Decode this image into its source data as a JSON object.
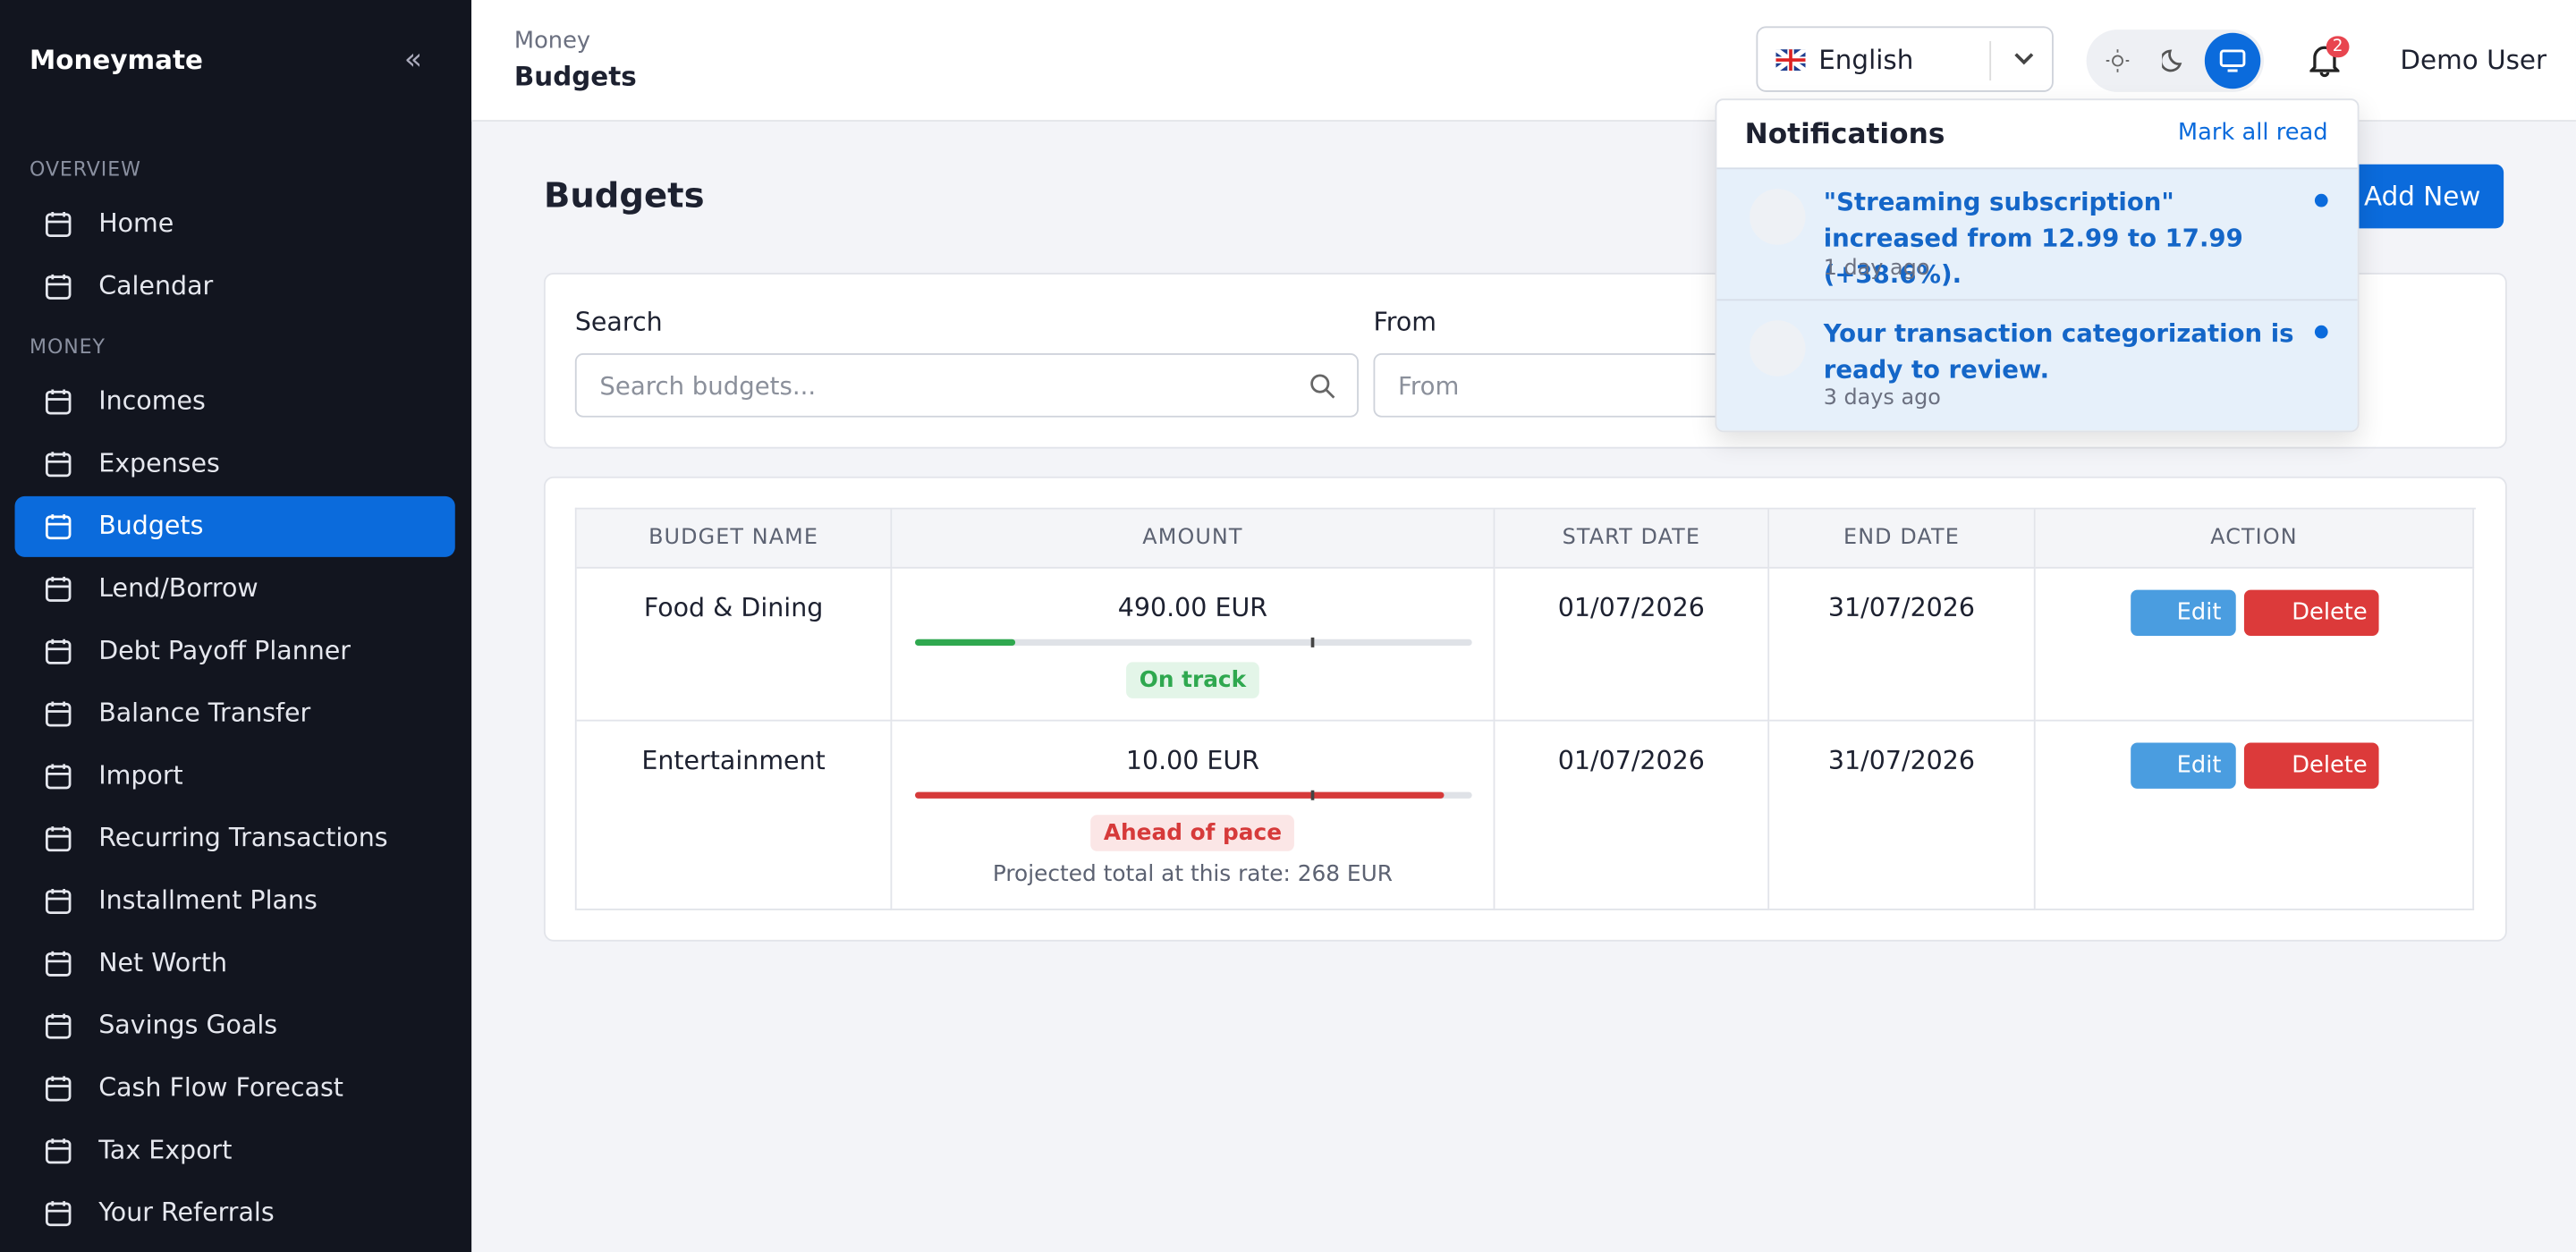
{
  "brand": "Moneymate",
  "sidebar": [
    {
      "section": "OVERVIEW",
      "items": [
        "Home",
        "Calendar"
      ]
    },
    {
      "section": "MONEY",
      "items": [
        "Incomes",
        "Expenses",
        "Budgets",
        "Lend/Borrow",
        "Debt Payoff Planner",
        "Balance Transfer",
        "Import",
        "Recurring Transactions",
        "Installment Plans",
        "Net Worth",
        "Savings Goals",
        "Cash Flow Forecast",
        "Tax Export",
        "Your Referrals"
      ]
    }
  ],
  "active_item": "Budgets",
  "header": {
    "breadcrumb_parent": "Money",
    "breadcrumb_current": "Budgets",
    "language": "English",
    "notification_count": "2",
    "user": "Demo User"
  },
  "notifications": {
    "title": "Notifications",
    "mark_all": "Mark all read",
    "items": [
      {
        "text": "\"Streaming subscription\" increased from 12.99 to 17.99 (+38.6%).",
        "time": "1 day ago"
      },
      {
        "text": "Your transaction categorization is ready to review.",
        "time": "3 days ago"
      }
    ]
  },
  "page": {
    "title": "Budgets",
    "add_button": "Add New"
  },
  "filters": {
    "search_label": "Search",
    "search_placeholder": "Search budgets...",
    "from_label": "From",
    "from_placeholder": "From"
  },
  "table": {
    "headers": [
      "BUDGET NAME",
      "AMOUNT",
      "START DATE",
      "END DATE",
      "ACTION"
    ],
    "edit": "Edit",
    "delete": "Delete",
    "rows": [
      {
        "name": "Food & Dining",
        "amount": "490.00 EUR",
        "progress": 18,
        "pace_marker": 71,
        "status": "On track",
        "start": "01/07/2026",
        "end": "31/07/2026"
      },
      {
        "name": "Entertainment",
        "amount": "10.00 EUR",
        "progress": 95,
        "pace_marker": 71,
        "status": "Ahead of pace",
        "projection": "Projected total at this rate: 268 EUR",
        "start": "01/07/2026",
        "end": "31/07/2026"
      }
    ]
  }
}
